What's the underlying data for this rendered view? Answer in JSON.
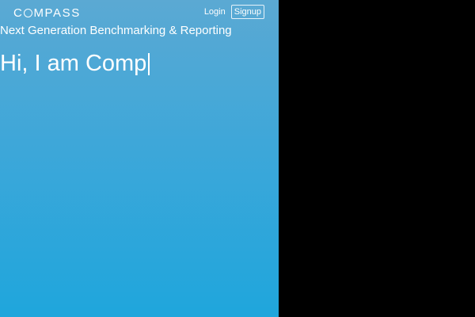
{
  "brand": {
    "logo_prefix": "C",
    "logo_suffix": "MPASS",
    "logo_full": "COMPASS"
  },
  "nav": {
    "login_label": "Login",
    "signup_label": "Signup"
  },
  "tagline": "Next Generation Benchmarking & Reporting",
  "hero": {
    "typed_text": "Hi, I am Comp"
  },
  "colors": {
    "gradient_top": "#5ba9d3",
    "gradient_bottom": "#1fa6dc",
    "outside_background": "#000000",
    "text": "#ffffff"
  }
}
